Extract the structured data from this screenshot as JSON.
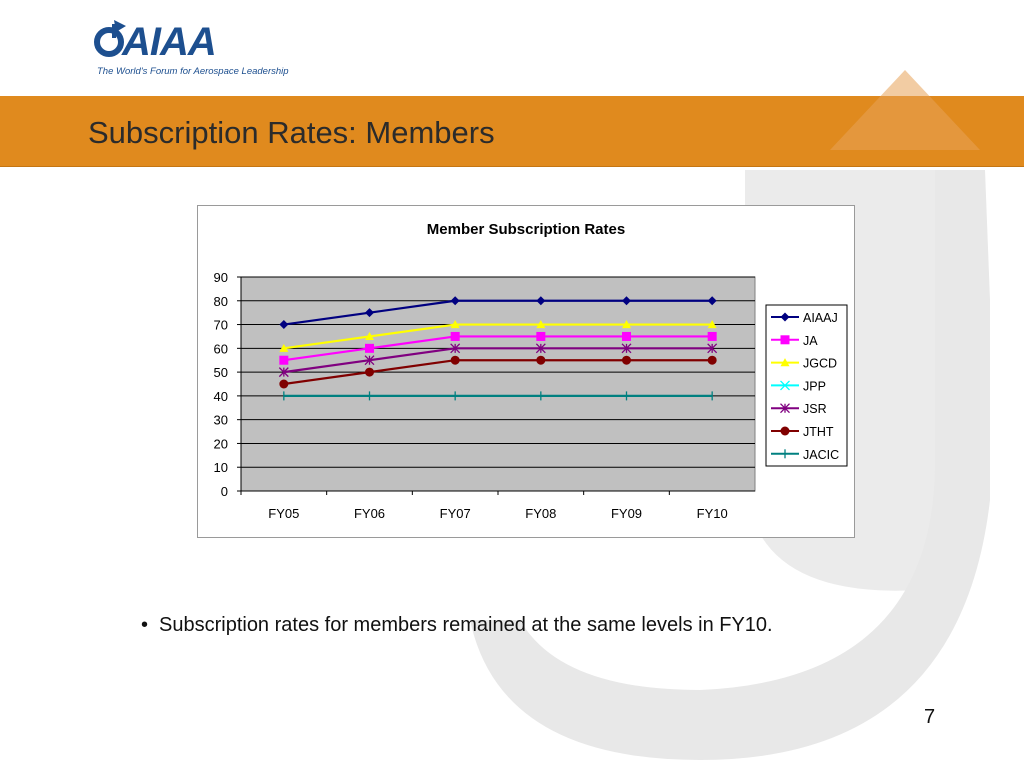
{
  "logo": {
    "name": "AIAA",
    "tagline": "The World's Forum for Aerospace Leadership"
  },
  "slide": {
    "title": "Subscription Rates:  Members",
    "bullet": "Subscription rates for members remained at the same levels in FY10.",
    "page_number": "7"
  },
  "colors": {
    "accent": "#e08a1e",
    "plot_background": "#c0c0c0",
    "watermark": "#e6e6e6"
  },
  "chart_data": {
    "type": "line",
    "title": "Member Subscription Rates",
    "categories": [
      "FY05",
      "FY06",
      "FY07",
      "FY08",
      "FY09",
      "FY10"
    ],
    "ylim": [
      0,
      90
    ],
    "yticks": [
      0,
      10,
      20,
      30,
      40,
      50,
      60,
      70,
      80,
      90
    ],
    "grid": true,
    "legend_position": "right",
    "series": [
      {
        "name": "AIAAJ",
        "values": [
          70,
          75,
          80,
          80,
          80,
          80
        ],
        "color": "#000080",
        "marker": "diamond"
      },
      {
        "name": "JA",
        "values": [
          55,
          60,
          65,
          65,
          65,
          65
        ],
        "color": "#ff00ff",
        "marker": "square"
      },
      {
        "name": "JGCD",
        "values": [
          60,
          65,
          70,
          70,
          70,
          70
        ],
        "color": "#ffff00",
        "marker": "triangle"
      },
      {
        "name": "JPP",
        "values": [
          null,
          null,
          null,
          null,
          null,
          null
        ],
        "color": "#00ffff",
        "marker": "x"
      },
      {
        "name": "JSR",
        "values": [
          50,
          55,
          60,
          60,
          60,
          60
        ],
        "color": "#800080",
        "marker": "star"
      },
      {
        "name": "JTHT",
        "values": [
          45,
          50,
          55,
          55,
          55,
          55
        ],
        "color": "#800000",
        "marker": "circle"
      },
      {
        "name": "JACIC",
        "values": [
          40,
          40,
          40,
          40,
          40,
          40
        ],
        "color": "#008080",
        "marker": "plus"
      }
    ]
  }
}
